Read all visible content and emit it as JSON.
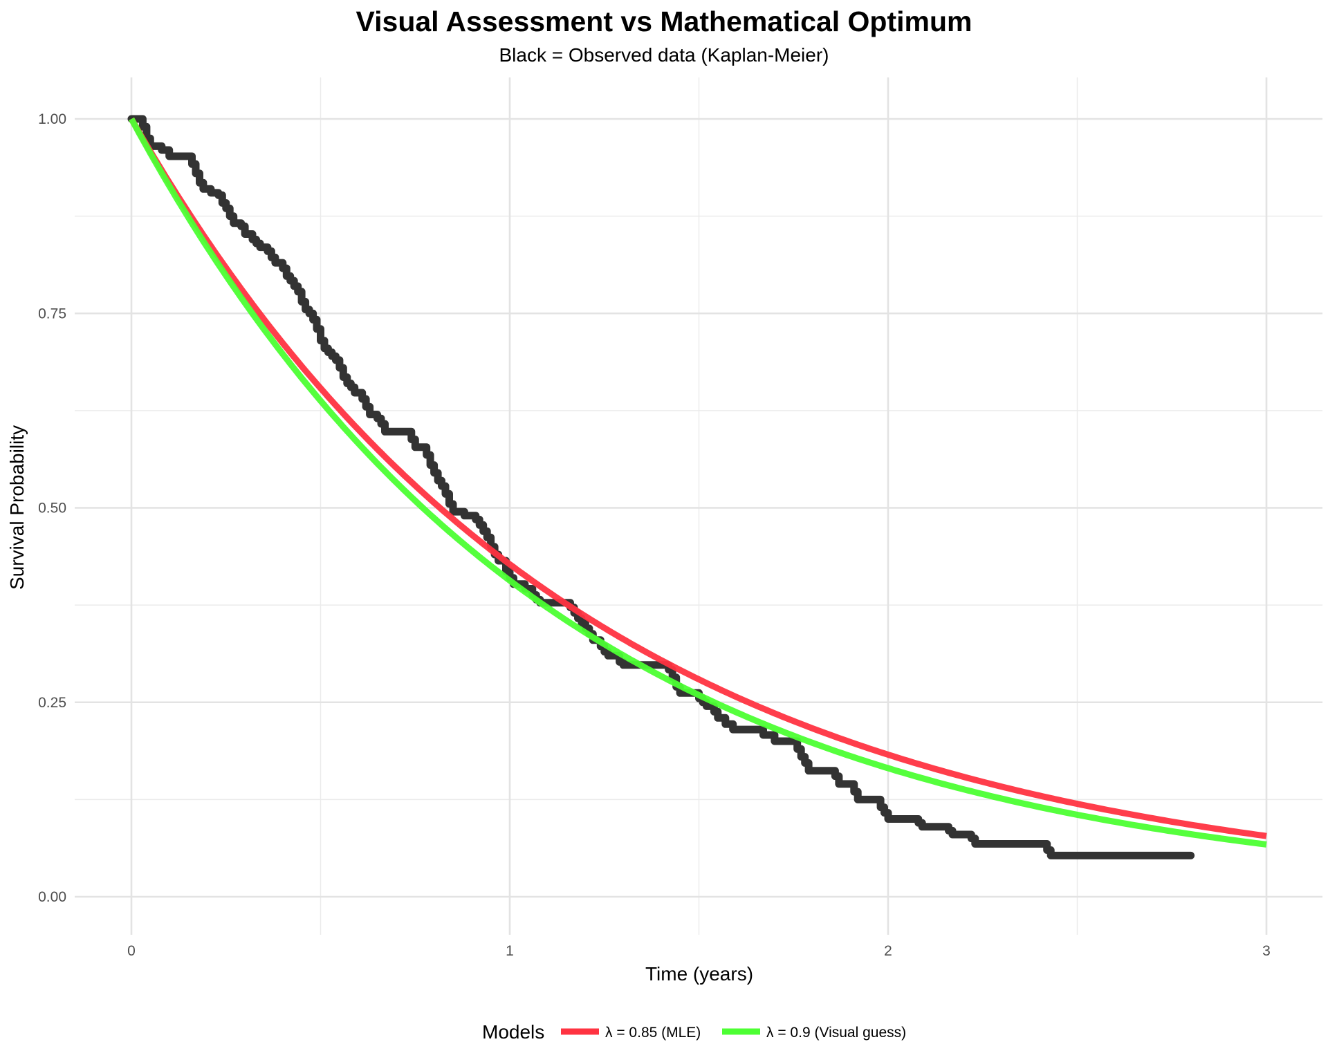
{
  "chart_data": {
    "type": "line",
    "title": "Visual Assessment vs Mathematical Optimum",
    "subtitle": "Black = Observed data (Kaplan-Meier)",
    "xlabel": "Time (years)",
    "ylabel": "Survival Probability",
    "xlim": [
      0,
      3
    ],
    "ylim": [
      0,
      1
    ],
    "x_ticks": [
      0,
      1,
      2,
      3
    ],
    "x_tick_labels": [
      "0",
      "1",
      "2",
      "3"
    ],
    "y_ticks": [
      0,
      0.25,
      0.5,
      0.75,
      1
    ],
    "y_tick_labels": [
      "0.00",
      "0.25",
      "0.50",
      "0.75",
      "1.00"
    ],
    "grid": true,
    "legend_position": "bottom",
    "legend_title": "Models",
    "observed": {
      "type": "step",
      "color": "#333333",
      "points": [
        [
          0.0,
          1.0
        ],
        [
          0.03,
          0.99
        ],
        [
          0.04,
          0.975
        ],
        [
          0.05,
          0.965
        ],
        [
          0.08,
          0.96
        ],
        [
          0.1,
          0.952
        ],
        [
          0.15,
          0.952
        ],
        [
          0.16,
          0.942
        ],
        [
          0.17,
          0.93
        ],
        [
          0.18,
          0.918
        ],
        [
          0.19,
          0.91
        ],
        [
          0.21,
          0.905
        ],
        [
          0.23,
          0.902
        ],
        [
          0.24,
          0.892
        ],
        [
          0.25,
          0.885
        ],
        [
          0.26,
          0.875
        ],
        [
          0.27,
          0.866
        ],
        [
          0.29,
          0.862
        ],
        [
          0.3,
          0.852
        ],
        [
          0.32,
          0.845
        ],
        [
          0.33,
          0.84
        ],
        [
          0.34,
          0.835
        ],
        [
          0.36,
          0.83
        ],
        [
          0.37,
          0.822
        ],
        [
          0.38,
          0.815
        ],
        [
          0.4,
          0.808
        ],
        [
          0.41,
          0.798
        ],
        [
          0.42,
          0.792
        ],
        [
          0.43,
          0.785
        ],
        [
          0.44,
          0.778
        ],
        [
          0.45,
          0.765
        ],
        [
          0.46,
          0.755
        ],
        [
          0.47,
          0.75
        ],
        [
          0.48,
          0.742
        ],
        [
          0.49,
          0.73
        ],
        [
          0.5,
          0.715
        ],
        [
          0.51,
          0.705
        ],
        [
          0.52,
          0.7
        ],
        [
          0.53,
          0.695
        ],
        [
          0.54,
          0.69
        ],
        [
          0.55,
          0.68
        ],
        [
          0.56,
          0.668
        ],
        [
          0.57,
          0.66
        ],
        [
          0.58,
          0.655
        ],
        [
          0.59,
          0.648
        ],
        [
          0.61,
          0.64
        ],
        [
          0.62,
          0.63
        ],
        [
          0.63,
          0.62
        ],
        [
          0.65,
          0.615
        ],
        [
          0.66,
          0.608
        ],
        [
          0.67,
          0.598
        ],
        [
          0.74,
          0.588
        ],
        [
          0.75,
          0.578
        ],
        [
          0.78,
          0.568
        ],
        [
          0.79,
          0.555
        ],
        [
          0.8,
          0.545
        ],
        [
          0.81,
          0.535
        ],
        [
          0.82,
          0.528
        ],
        [
          0.83,
          0.518
        ],
        [
          0.84,
          0.505
        ],
        [
          0.85,
          0.495
        ],
        [
          0.88,
          0.49
        ],
        [
          0.91,
          0.485
        ],
        [
          0.92,
          0.478
        ],
        [
          0.93,
          0.47
        ],
        [
          0.94,
          0.462
        ],
        [
          0.95,
          0.45
        ],
        [
          0.96,
          0.44
        ],
        [
          0.97,
          0.432
        ],
        [
          0.99,
          0.418
        ],
        [
          1.0,
          0.41
        ],
        [
          1.01,
          0.402
        ],
        [
          1.04,
          0.396
        ],
        [
          1.06,
          0.388
        ],
        [
          1.07,
          0.382
        ],
        [
          1.08,
          0.378
        ],
        [
          1.16,
          0.372
        ],
        [
          1.17,
          0.365
        ],
        [
          1.18,
          0.358
        ],
        [
          1.19,
          0.352
        ],
        [
          1.2,
          0.345
        ],
        [
          1.21,
          0.338
        ],
        [
          1.22,
          0.33
        ],
        [
          1.24,
          0.322
        ],
        [
          1.25,
          0.315
        ],
        [
          1.26,
          0.31
        ],
        [
          1.29,
          0.302
        ],
        [
          1.3,
          0.298
        ],
        [
          1.42,
          0.292
        ],
        [
          1.43,
          0.282
        ],
        [
          1.44,
          0.27
        ],
        [
          1.45,
          0.262
        ],
        [
          1.5,
          0.255
        ],
        [
          1.51,
          0.25
        ],
        [
          1.52,
          0.245
        ],
        [
          1.54,
          0.238
        ],
        [
          1.55,
          0.23
        ],
        [
          1.57,
          0.222
        ],
        [
          1.59,
          0.215
        ],
        [
          1.67,
          0.208
        ],
        [
          1.7,
          0.2
        ],
        [
          1.76,
          0.19
        ],
        [
          1.77,
          0.18
        ],
        [
          1.78,
          0.172
        ],
        [
          1.79,
          0.162
        ],
        [
          1.86,
          0.155
        ],
        [
          1.87,
          0.145
        ],
        [
          1.91,
          0.135
        ],
        [
          1.92,
          0.125
        ],
        [
          1.98,
          0.115
        ],
        [
          1.99,
          0.108
        ],
        [
          2.0,
          0.1
        ],
        [
          2.08,
          0.095
        ],
        [
          2.09,
          0.09
        ],
        [
          2.16,
          0.085
        ],
        [
          2.17,
          0.08
        ],
        [
          2.22,
          0.075
        ],
        [
          2.23,
          0.068
        ],
        [
          2.42,
          0.06
        ],
        [
          2.43,
          0.053
        ],
        [
          2.8,
          0.053
        ]
      ]
    },
    "series": [
      {
        "name": "λ = 0.85 (MLE)",
        "type": "exp_curve",
        "lambda": 0.85,
        "color": "#FF3341"
      },
      {
        "name": "λ = 0.9 (Visual guess)",
        "type": "exp_curve",
        "lambda": 0.9,
        "color": "#4CFF33"
      }
    ]
  }
}
